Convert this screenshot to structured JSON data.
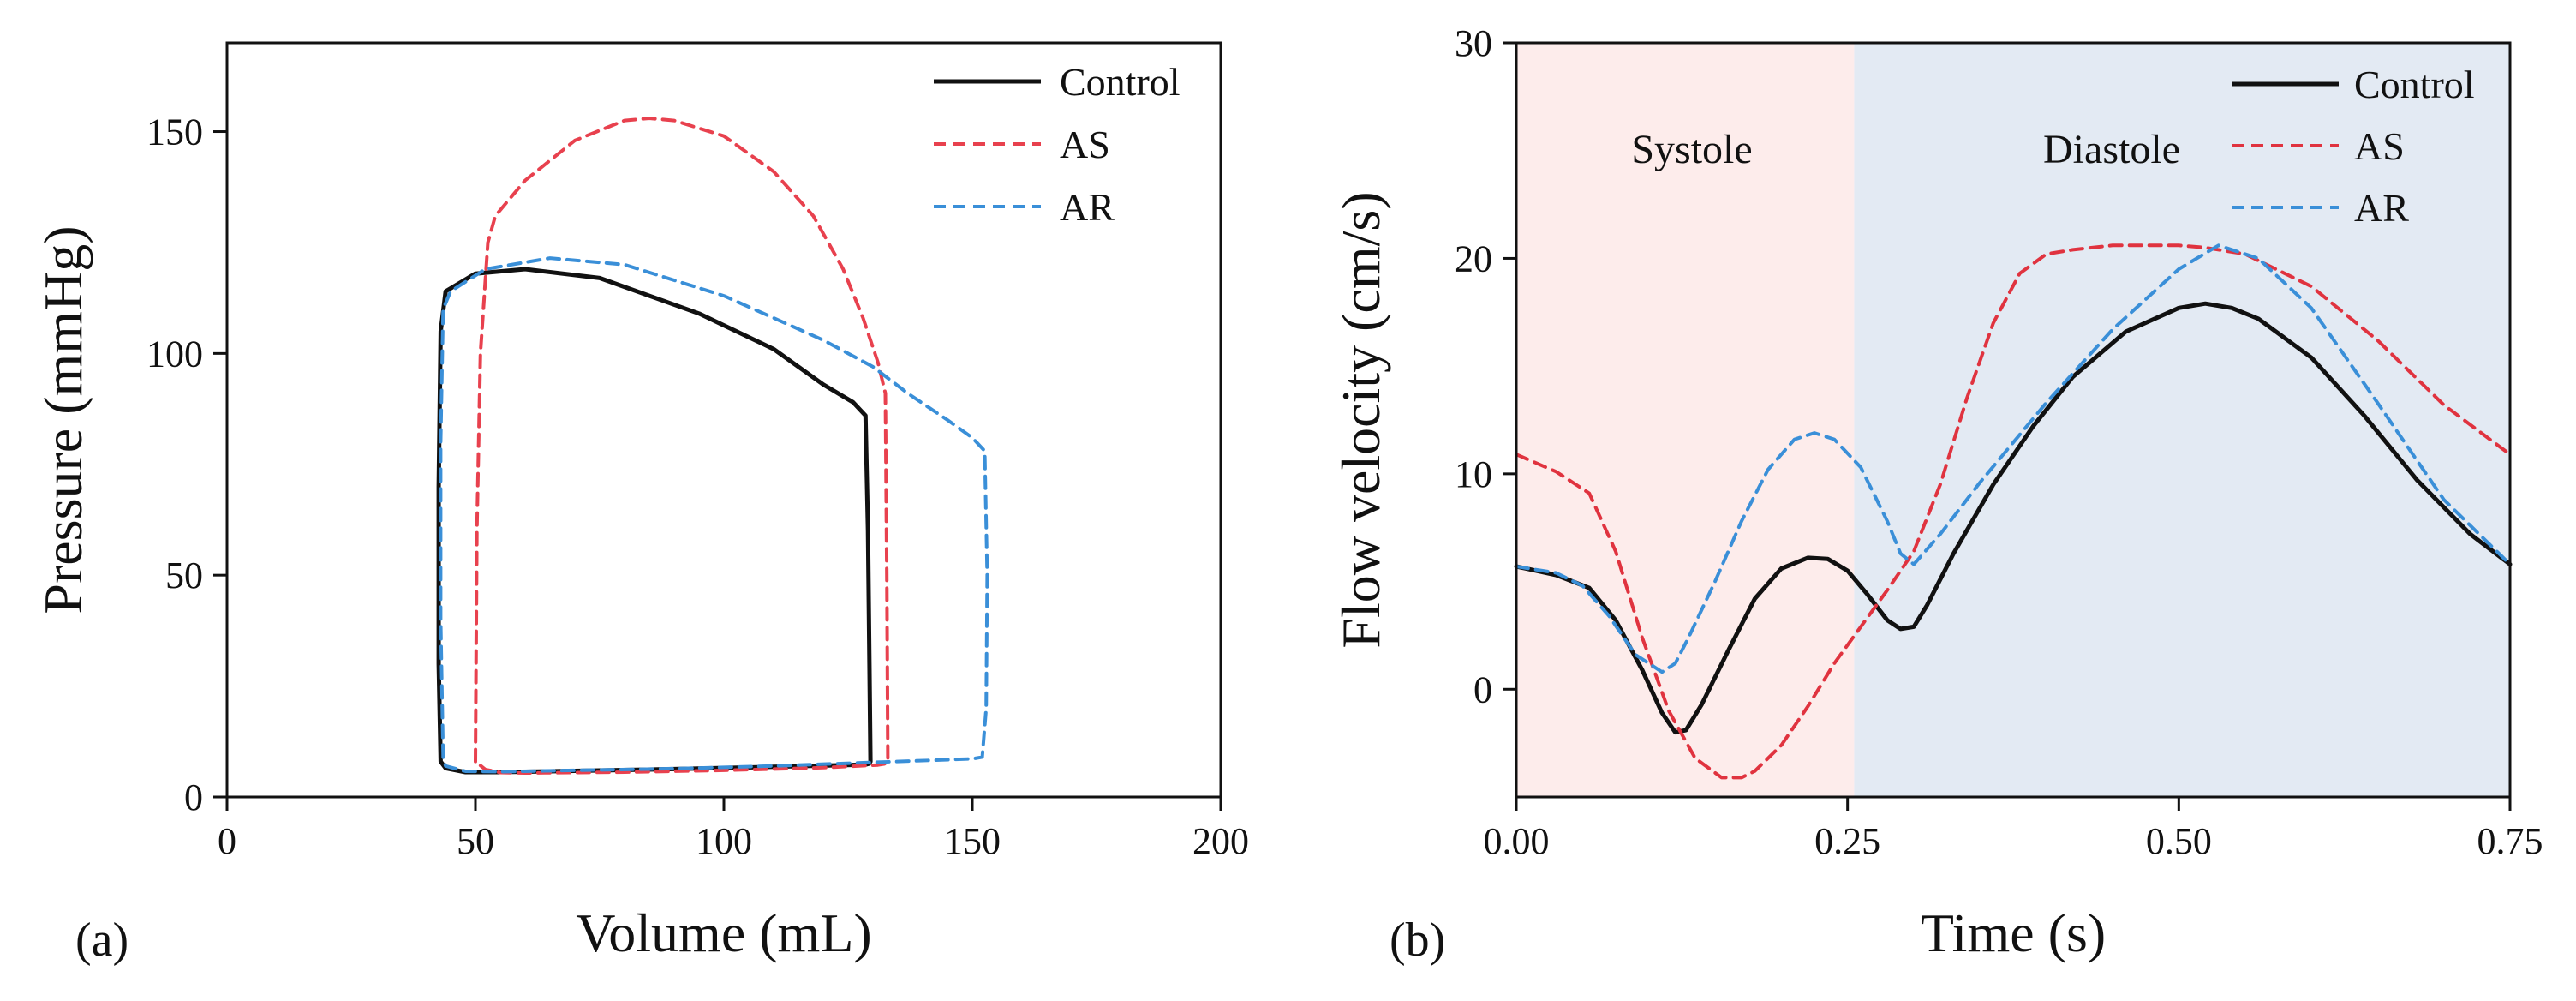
{
  "chart_data": [
    {
      "id": "a",
      "type": "line",
      "panel_label": "(a)",
      "xlabel": "Volume (mL)",
      "ylabel": "Pressure (mmHg)",
      "xlim": [
        0,
        200
      ],
      "ylim": [
        0,
        170
      ],
      "xticks": [
        0,
        50,
        100,
        150,
        200
      ],
      "xtick_labels": [
        "0",
        "50",
        "100",
        "150",
        "200"
      ],
      "yticks": [
        0,
        50,
        100,
        150
      ],
      "ytick_labels": [
        "0",
        "50",
        "100",
        "150"
      ],
      "legend_position": "top-right",
      "series": [
        {
          "name": "Control",
          "color": "#111111",
          "dash": "solid",
          "x": [
            43,
            42.6,
            42.6,
            43,
            44,
            50,
            60,
            75,
            95,
            110,
            120,
            126,
            128.5,
            129,
            129.3,
            129.5,
            129.2,
            128.5,
            110,
            90,
            70,
            55,
            48,
            44,
            43
          ],
          "y": [
            8,
            30,
            70,
            105,
            114,
            118,
            119,
            117,
            109,
            101,
            93,
            89,
            86,
            60,
            30,
            8,
            7.5,
            7.3,
            6.8,
            6.3,
            5.9,
            5.6,
            5.6,
            6.5,
            8
          ]
        },
        {
          "name": "AS",
          "color": "#e8414e",
          "dash": "dashed",
          "x": [
            50,
            50.3,
            51,
            52.5,
            54,
            60,
            70,
            80,
            85,
            90,
            100,
            110,
            118,
            124,
            128,
            131,
            132.5,
            132.8,
            133,
            132.5,
            131,
            120,
            100,
            80,
            60,
            55,
            52,
            50
          ],
          "y": [
            8,
            60,
            100,
            125,
            131,
            139,
            148,
            152.5,
            153,
            152.5,
            149,
            141,
            131,
            119,
            108,
            98,
            91,
            50,
            8,
            7.5,
            7.2,
            6.6,
            6.0,
            5.6,
            5.4,
            5.5,
            6.2,
            8
          ]
        },
        {
          "name": "AR",
          "color": "#3a8fd8",
          "dash": "dashed",
          "x": [
            43.5,
            43,
            43,
            43.5,
            45,
            52,
            65,
            80,
            100,
            120,
            130,
            137,
            145,
            150,
            152.5,
            153,
            152.8,
            152,
            150,
            130,
            110,
            90,
            70,
            55,
            48,
            44,
            43.5
          ],
          "y": [
            9,
            40,
            80,
            110,
            114,
            119,
            121.5,
            120,
            113,
            103,
            97,
            91,
            85,
            81,
            78,
            50,
            20,
            9,
            8.6,
            7.8,
            7.0,
            6.4,
            6.0,
            5.7,
            5.8,
            7,
            9
          ]
        }
      ]
    },
    {
      "id": "b",
      "type": "line",
      "panel_label": "(b)",
      "xlabel": "Time (s)",
      "ylabel": "Flow velocity (cm/s)",
      "xlim": [
        0,
        0.75
      ],
      "ylim": [
        -5,
        30
      ],
      "xticks": [
        0,
        0.25,
        0.5,
        0.75
      ],
      "xtick_labels": [
        "0.00",
        "0.25",
        "0.50",
        "0.75"
      ],
      "yticks": [
        0,
        10,
        20,
        30
      ],
      "ytick_labels": [
        "0",
        "10",
        "20",
        "30"
      ],
      "legend_position": "top-right",
      "regions": [
        {
          "label": "Systole",
          "x0": 0,
          "x1": 0.255,
          "color": "#fdeceb"
        },
        {
          "label": "Diastole",
          "x0": 0.255,
          "x1": 0.75,
          "color": "#e3eaf3"
        }
      ],
      "series": [
        {
          "name": "Control",
          "color": "#111111",
          "dash": "solid",
          "x": [
            0,
            0.03,
            0.055,
            0.075,
            0.095,
            0.11,
            0.12,
            0.128,
            0.14,
            0.16,
            0.18,
            0.2,
            0.22,
            0.235,
            0.25,
            0.265,
            0.28,
            0.29,
            0.3,
            0.31,
            0.33,
            0.36,
            0.39,
            0.42,
            0.46,
            0.5,
            0.52,
            0.54,
            0.56,
            0.6,
            0.64,
            0.68,
            0.72,
            0.75
          ],
          "y": [
            5.7,
            5.3,
            4.7,
            3.2,
            0.9,
            -1.1,
            -2.0,
            -1.9,
            -0.7,
            1.8,
            4.2,
            5.6,
            6.1,
            6.05,
            5.5,
            4.4,
            3.2,
            2.8,
            2.9,
            3.9,
            6.3,
            9.5,
            12.2,
            14.5,
            16.6,
            17.7,
            17.9,
            17.7,
            17.2,
            15.4,
            12.7,
            9.7,
            7.2,
            5.8
          ]
        },
        {
          "name": "AS",
          "color": "#e0333f",
          "dash": "dashed",
          "x": [
            0,
            0.03,
            0.055,
            0.075,
            0.095,
            0.115,
            0.135,
            0.155,
            0.17,
            0.18,
            0.2,
            0.22,
            0.24,
            0.26,
            0.28,
            0.3,
            0.32,
            0.34,
            0.36,
            0.38,
            0.4,
            0.42,
            0.45,
            0.48,
            0.5,
            0.52,
            0.55,
            0.6,
            0.65,
            0.7,
            0.75
          ],
          "y": [
            10.9,
            10.1,
            9.1,
            6.4,
            2.4,
            -1.0,
            -3.2,
            -4.1,
            -4.1,
            -3.8,
            -2.6,
            -0.8,
            1.2,
            2.9,
            4.6,
            6.4,
            9.5,
            13.5,
            17.0,
            19.3,
            20.2,
            20.4,
            20.6,
            20.6,
            20.6,
            20.5,
            20.2,
            18.7,
            16.2,
            13.2,
            10.9
          ]
        },
        {
          "name": "AR",
          "color": "#3a8fd8",
          "dash": "dashed",
          "x": [
            0,
            0.03,
            0.05,
            0.07,
            0.09,
            0.11,
            0.12,
            0.13,
            0.15,
            0.17,
            0.19,
            0.21,
            0.225,
            0.24,
            0.26,
            0.28,
            0.29,
            0.3,
            0.32,
            0.35,
            0.4,
            0.45,
            0.5,
            0.53,
            0.56,
            0.6,
            0.65,
            0.7,
            0.75
          ],
          "y": [
            5.7,
            5.4,
            4.8,
            3.4,
            1.6,
            0.8,
            1.2,
            2.4,
            5.0,
            7.8,
            10.2,
            11.6,
            11.9,
            11.6,
            10.3,
            7.8,
            6.3,
            5.8,
            7.2,
            9.6,
            13.3,
            16.7,
            19.5,
            20.6,
            20.0,
            17.7,
            13.3,
            8.8,
            5.8
          ]
        }
      ]
    }
  ]
}
